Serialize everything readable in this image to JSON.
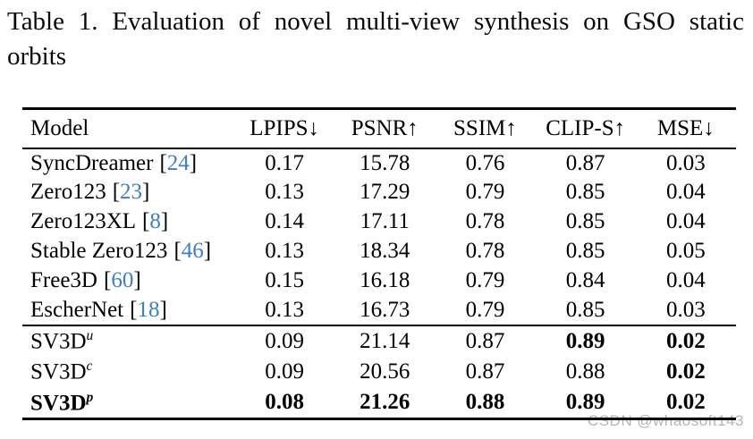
{
  "caption": {
    "full_text": "Table 1. Evaluation of novel multi-view synthesis on GSO static orbits",
    "line1": "Table 1. Evaluation of novel multi-view synthesis on GSO static",
    "line2": "orbits"
  },
  "table": {
    "columns": [
      "Model",
      "LPIPS↓",
      "PSNR↑",
      "SSIM↑",
      "CLIP-S↑",
      "MSE↓"
    ],
    "citation_brackets": {
      "open": "[",
      "close": "]"
    },
    "rows": [
      {
        "name": "SyncDreamer",
        "cite": "24",
        "values": [
          "0.17",
          "15.78",
          "0.76",
          "0.87",
          "0.03"
        ]
      },
      {
        "name": "Zero123",
        "cite": "23",
        "values": [
          "0.13",
          "17.29",
          "0.79",
          "0.85",
          "0.04"
        ]
      },
      {
        "name": "Zero123XL",
        "cite": "8",
        "values": [
          "0.14",
          "17.11",
          "0.78",
          "0.85",
          "0.04"
        ]
      },
      {
        "name": "Stable Zero123",
        "cite": "46",
        "values": [
          "0.13",
          "18.34",
          "0.78",
          "0.85",
          "0.05"
        ]
      },
      {
        "name": "Free3D",
        "cite": "60",
        "values": [
          "0.15",
          "16.18",
          "0.79",
          "0.84",
          "0.04"
        ]
      },
      {
        "name": "EscherNet",
        "cite": "18",
        "values": [
          "0.13",
          "16.73",
          "0.79",
          "0.85",
          "0.03"
        ]
      },
      {
        "name": "SV3D",
        "sup": "u",
        "values": [
          "0.09",
          "21.14",
          "0.87",
          "0.89",
          "0.02"
        ]
      },
      {
        "name": "SV3D",
        "sup": "c",
        "values": [
          "0.09",
          "20.56",
          "0.87",
          "0.88",
          "0.02"
        ]
      },
      {
        "name": "SV3D",
        "sup": "p",
        "values": [
          "0.08",
          "21.26",
          "0.88",
          "0.89",
          "0.02"
        ]
      }
    ]
  },
  "watermark": "CSDN @whaosoft143",
  "colors": {
    "background": "#ffffff",
    "text": "#000000",
    "citation_link": "#3e7ec4",
    "watermark": "#b5b5b5"
  }
}
